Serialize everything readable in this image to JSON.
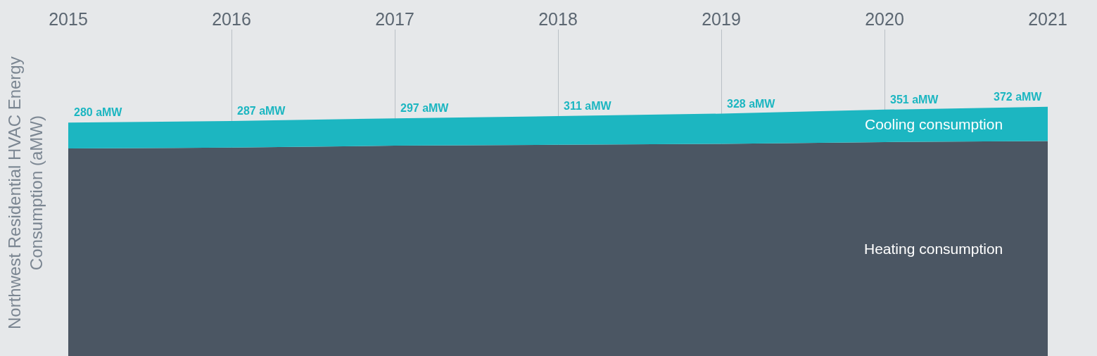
{
  "chart_data": {
    "type": "area",
    "stacked": true,
    "ylabel": "Northwest Residential HVAC Energy\nConsumption (aMW)",
    "x": [
      2015,
      2016,
      2017,
      2018,
      2019,
      2020,
      2021
    ],
    "xlim": [
      2015,
      2021
    ],
    "xticks": [
      2015,
      2016,
      2017,
      2018,
      2019,
      2020,
      2021
    ],
    "grid": "x",
    "tick_labels": "x",
    "series": [
      {
        "name": "Heating consumption",
        "color": "#4b5663",
        "values": [
          2250,
          2260,
          2280,
          2290,
          2300,
          2320,
          2330
        ]
      },
      {
        "name": "Cooling consumption",
        "color": "#1cb6c1",
        "values": [
          280,
          287,
          297,
          311,
          328,
          351,
          372
        ],
        "value_labels": [
          "280 aMW",
          "287 aMW",
          "297 aMW",
          "311 aMW",
          "328 aMW",
          "351 aMW",
          "372 aMW"
        ]
      }
    ]
  }
}
